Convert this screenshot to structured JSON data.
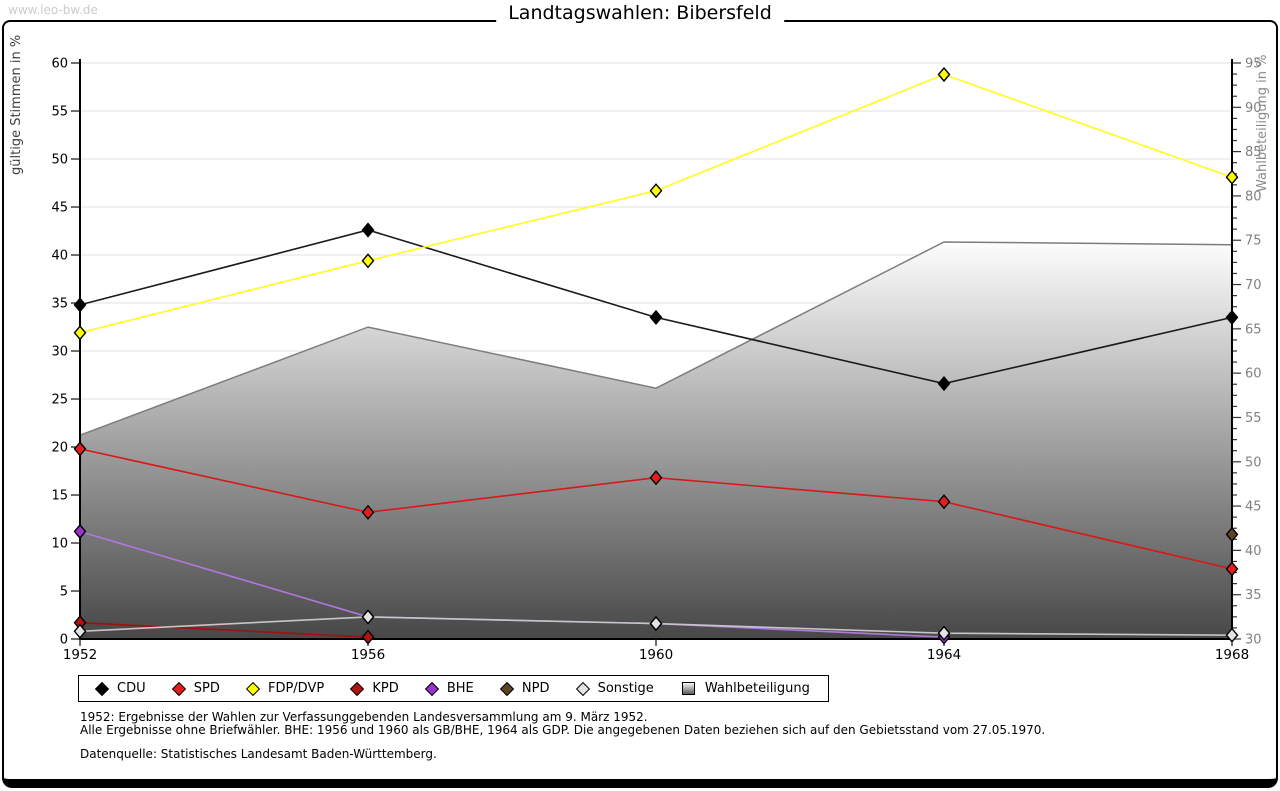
{
  "watermark": "www.leo-bw.de",
  "title": "Landtagswahlen: Bibersfeld",
  "chart_data": {
    "type": "line",
    "title": "Landtagswahlen: Bibersfeld",
    "x": [
      1952,
      1956,
      1960,
      1964,
      1968
    ],
    "ylabel_left": "gültige Stimmen in %",
    "ylabel_right": "Wahlbeteiligung in %",
    "ylim_left": [
      0,
      60
    ],
    "ylim_right": [
      30,
      95
    ],
    "ytick_step": 5,
    "grid": true,
    "legend_position": "bottom",
    "series": [
      {
        "name": "CDU",
        "color": "#000000",
        "line_color": "#1a1a1a",
        "axis": "left",
        "x": [
          1952,
          1956,
          1960,
          1964,
          1968
        ],
        "values": [
          34.8,
          42.6,
          33.5,
          26.6,
          33.5
        ]
      },
      {
        "name": "SPD",
        "color": "#e41e1e",
        "line_color": "#d91818",
        "axis": "left",
        "x": [
          1952,
          1956,
          1960,
          1964,
          1968
        ],
        "values": [
          19.8,
          13.2,
          16.8,
          14.3,
          7.3
        ]
      },
      {
        "name": "FDP/DVP",
        "color": "#ffff00",
        "line_color": "#ffff1a",
        "axis": "left",
        "x": [
          1952,
          1956,
          1960,
          1964,
          1968
        ],
        "values": [
          31.9,
          39.4,
          46.7,
          58.8,
          48.1
        ]
      },
      {
        "name": "KPD",
        "color": "#b31212",
        "line_color": "#a01010",
        "axis": "left",
        "x": [
          1952,
          1956
        ],
        "values": [
          1.7,
          0.2
        ]
      },
      {
        "name": "BHE",
        "color": "#9933cc",
        "line_color": "#b277dd",
        "axis": "left",
        "x": [
          1952,
          1956,
          1960,
          1964
        ],
        "values": [
          11.2,
          2.3,
          1.6,
          0.2
        ]
      },
      {
        "name": "NPD",
        "color": "#5e4226",
        "line_color": "#5e4226",
        "axis": "left",
        "x": [
          1968
        ],
        "values": [
          10.9
        ]
      },
      {
        "name": "Sonstige",
        "color": "#e3e3e3",
        "line_color": "#c6c6c6",
        "axis": "left",
        "x": [
          1952,
          1956,
          1960,
          1964,
          1968
        ],
        "values": [
          0.8,
          2.3,
          1.6,
          0.6,
          0.4
        ]
      }
    ],
    "area_series": {
      "name": "Wahlbeteiligung",
      "axis": "right",
      "x": [
        1952,
        1956,
        1960,
        1964,
        1968
      ],
      "values": [
        53.0,
        65.2,
        58.3,
        74.8,
        74.5
      ]
    },
    "style": {
      "grid_color": "#e2e2e2",
      "axis_color": "#000000",
      "right_text_color": "#808080",
      "left_label_color": "#404040",
      "right_label_color": "#8a8a8a",
      "area_top_color": "#fdfdfd",
      "area_bottom_color": "#474747",
      "area_edge_color": "#7d7d7d"
    }
  },
  "footnotes": [
    "1952: Ergebnisse der Wahlen zur Verfassunggebenden Landesversammlung am 9. März 1952.",
    "Alle Ergebnisse ohne Briefwähler. BHE: 1956 und 1960 als GB/BHE, 1964 als GDP. Die angegebenen Daten beziehen sich auf den Gebietsstand vom 27.05.1970."
  ],
  "source": "Datenquelle: Statistisches Landesamt Baden-Württemberg."
}
